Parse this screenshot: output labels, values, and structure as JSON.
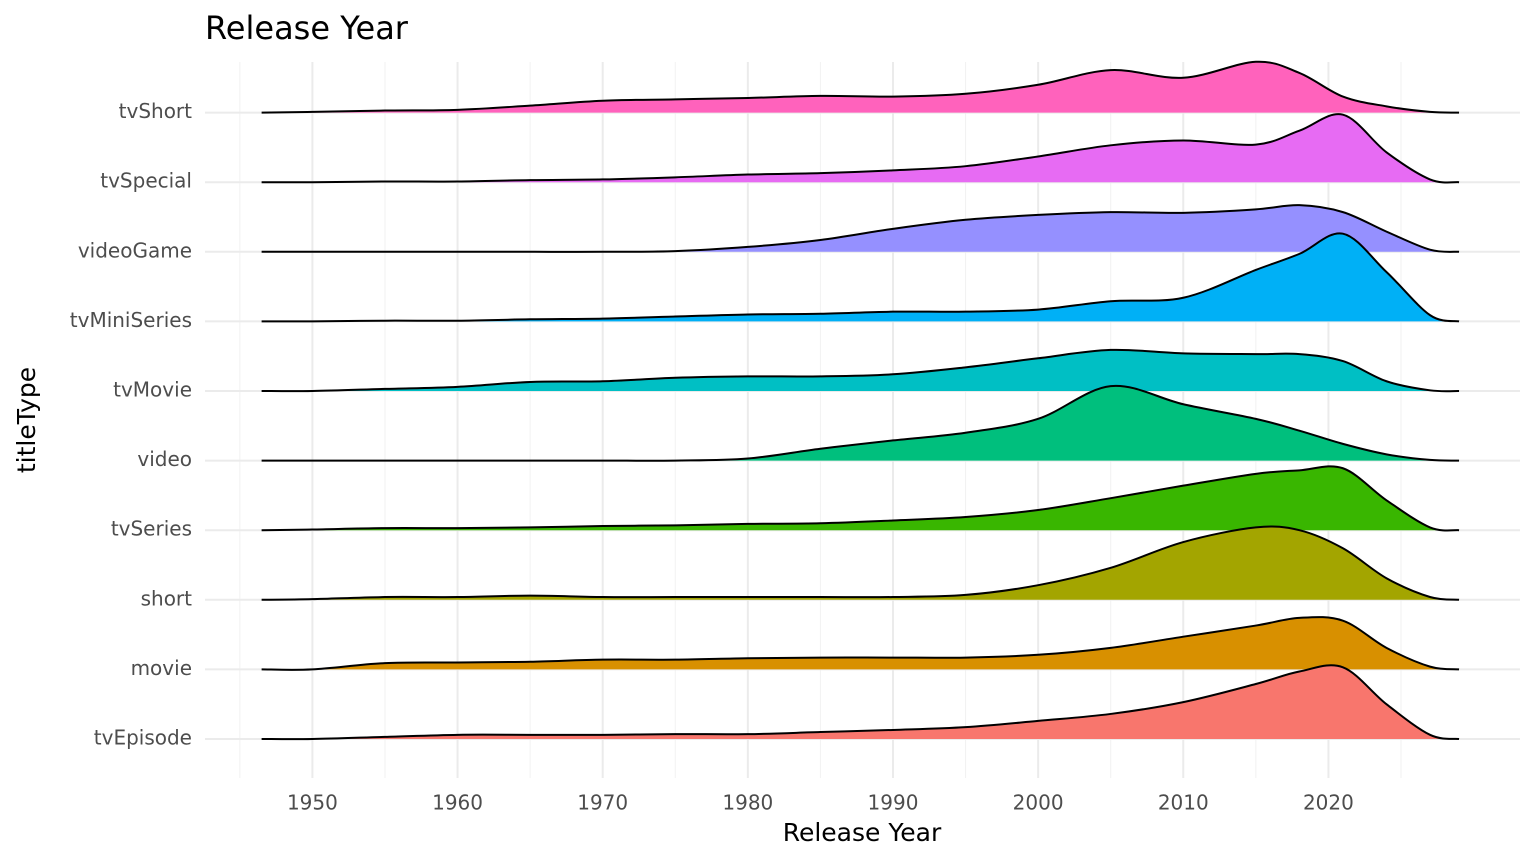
{
  "chart_data": {
    "type": "ridgeline",
    "title": "Release Year",
    "x_label": "Release Year",
    "y_label": "titleType",
    "x": [
      1946.5,
      1950,
      1955,
      1960,
      1965,
      1970,
      1975,
      1980,
      1985,
      1990,
      1995,
      2000,
      2005,
      2010,
      2015,
      2018,
      2021,
      2024,
      2027,
      2029
    ],
    "xlim": [
      1942.6,
      2033.2
    ],
    "xticks": [
      1950,
      1960,
      1970,
      1980,
      1990,
      2000,
      2010,
      2020
    ],
    "xminor_ticks": [
      1945,
      1955,
      1965,
      1975,
      1985,
      1995,
      2005,
      2015,
      2025
    ],
    "grid": true,
    "series": [
      {
        "name": "tvEpisode",
        "color": "#F8766D",
        "values": [
          0,
          0,
          0.03,
          0.06,
          0.06,
          0.06,
          0.07,
          0.07,
          0.1,
          0.13,
          0.17,
          0.26,
          0.36,
          0.53,
          0.79,
          0.97,
          1.03,
          0.5,
          0.06,
          0
        ]
      },
      {
        "name": "movie",
        "color": "#D89000",
        "values": [
          0,
          0,
          0.09,
          0.1,
          0.11,
          0.14,
          0.14,
          0.16,
          0.17,
          0.17,
          0.17,
          0.21,
          0.31,
          0.47,
          0.63,
          0.74,
          0.7,
          0.31,
          0.04,
          0
        ]
      },
      {
        "name": "short",
        "color": "#A3A500",
        "values": [
          0,
          0.01,
          0.04,
          0.04,
          0.06,
          0.04,
          0.04,
          0.04,
          0.04,
          0.04,
          0.07,
          0.21,
          0.46,
          0.83,
          1.04,
          1,
          0.74,
          0.31,
          0.04,
          0
        ]
      },
      {
        "name": "tvSeries",
        "color": "#39B600",
        "values": [
          0,
          0.01,
          0.03,
          0.03,
          0.04,
          0.06,
          0.07,
          0.09,
          0.1,
          0.14,
          0.19,
          0.29,
          0.46,
          0.64,
          0.81,
          0.86,
          0.89,
          0.43,
          0.04,
          0
        ]
      },
      {
        "name": "video",
        "color": "#00BF7D",
        "values": [
          0,
          0,
          0,
          0,
          0,
          0,
          0,
          0.03,
          0.17,
          0.29,
          0.4,
          0.6,
          1.07,
          0.81,
          0.6,
          0.43,
          0.24,
          0.09,
          0.01,
          0
        ]
      },
      {
        "name": "tvMovie",
        "color": "#00BFC4",
        "values": [
          0,
          0,
          0.03,
          0.06,
          0.13,
          0.14,
          0.19,
          0.21,
          0.21,
          0.24,
          0.34,
          0.47,
          0.59,
          0.54,
          0.53,
          0.53,
          0.43,
          0.14,
          0.01,
          0
        ]
      },
      {
        "name": "tvMiniSeries",
        "color": "#00B0F6",
        "values": [
          0,
          0,
          0.01,
          0.01,
          0.03,
          0.04,
          0.07,
          0.1,
          0.11,
          0.14,
          0.14,
          0.17,
          0.29,
          0.34,
          0.74,
          0.97,
          1.26,
          0.71,
          0.09,
          0
        ]
      },
      {
        "name": "videoGame",
        "color": "#9590FF",
        "values": [
          0,
          0,
          0,
          0,
          0,
          0,
          0.01,
          0.07,
          0.17,
          0.33,
          0.46,
          0.53,
          0.57,
          0.56,
          0.61,
          0.67,
          0.57,
          0.29,
          0.03,
          0
        ]
      },
      {
        "name": "tvSpecial",
        "color": "#E76BF3",
        "values": [
          0,
          0,
          0.01,
          0.01,
          0.03,
          0.04,
          0.07,
          0.11,
          0.13,
          0.17,
          0.23,
          0.37,
          0.53,
          0.6,
          0.54,
          0.74,
          0.97,
          0.43,
          0.04,
          0
        ]
      },
      {
        "name": "tvShort",
        "color": "#FF62BC",
        "values": [
          0,
          0.01,
          0.03,
          0.04,
          0.1,
          0.17,
          0.19,
          0.21,
          0.24,
          0.23,
          0.27,
          0.4,
          0.61,
          0.5,
          0.73,
          0.57,
          0.23,
          0.09,
          0.01,
          0
        ]
      }
    ]
  }
}
